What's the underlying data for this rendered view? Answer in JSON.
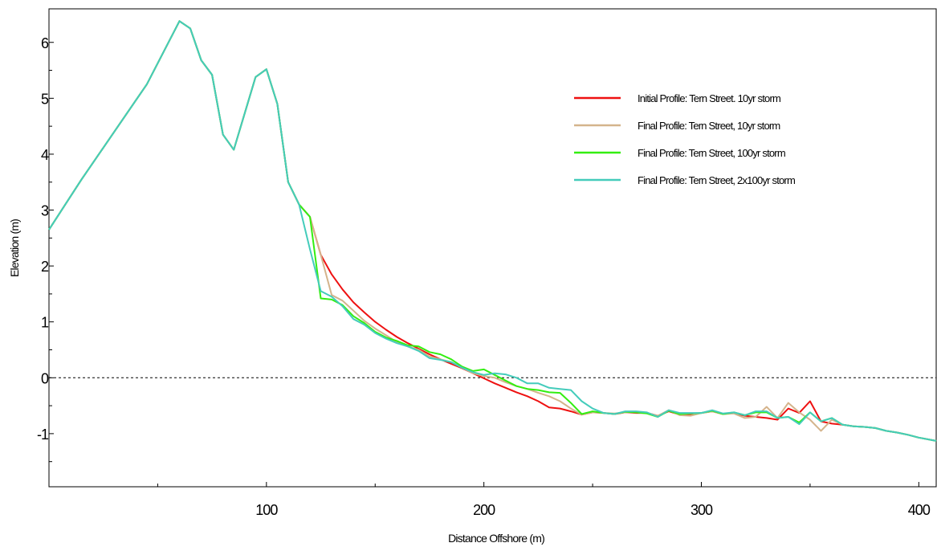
{
  "chart_data": {
    "type": "line",
    "xlabel": "Distance Offshore (m)",
    "ylabel": "Elevation (m)",
    "xlim": [
      0,
      408
    ],
    "ylim": [
      -1.95,
      6.6
    ],
    "x_ticks": [
      100,
      200,
      300,
      400
    ],
    "x_minor_ticks": [
      50,
      150,
      250,
      350
    ],
    "y_ticks": [
      -1,
      0,
      1,
      2,
      3,
      4,
      5,
      6
    ],
    "y_minor_ticks": [
      -1.5,
      -0.5,
      0.5,
      1.5,
      2.5,
      3.5,
      4.5,
      5.5
    ],
    "reference_line": {
      "y": 0,
      "style": "dashed"
    },
    "grid": false,
    "legend_position": "top-right",
    "series": [
      {
        "name": "Initial Profile: Tern Street. 10yr storm",
        "color": "#ee1111",
        "points": [
          [
            0,
            2.65
          ],
          [
            15,
            3.55
          ],
          [
            30,
            4.4
          ],
          [
            45,
            5.25
          ],
          [
            60,
            6.38
          ],
          [
            65,
            6.25
          ],
          [
            70,
            5.68
          ],
          [
            75,
            5.42
          ],
          [
            80,
            4.35
          ],
          [
            85,
            4.08
          ],
          [
            95,
            5.38
          ],
          [
            100,
            5.52
          ],
          [
            105,
            4.9
          ],
          [
            110,
            3.5
          ],
          [
            115,
            3.1
          ],
          [
            120,
            2.88
          ],
          [
            125,
            2.2
          ],
          [
            130,
            1.85
          ],
          [
            135,
            1.58
          ],
          [
            140,
            1.35
          ],
          [
            145,
            1.17
          ],
          [
            150,
            1.0
          ],
          [
            155,
            0.86
          ],
          [
            160,
            0.73
          ],
          [
            165,
            0.62
          ],
          [
            170,
            0.52
          ],
          [
            175,
            0.42
          ],
          [
            180,
            0.33
          ],
          [
            185,
            0.25
          ],
          [
            190,
            0.17
          ],
          [
            195,
            0.08
          ],
          [
            200,
            -0.01
          ],
          [
            205,
            -0.1
          ],
          [
            210,
            -0.18
          ],
          [
            215,
            -0.26
          ],
          [
            220,
            -0.33
          ],
          [
            225,
            -0.42
          ],
          [
            230,
            -0.53
          ],
          [
            235,
            -0.55
          ],
          [
            240,
            -0.6
          ],
          [
            245,
            -0.66
          ],
          [
            250,
            -0.62
          ],
          [
            255,
            -0.63
          ],
          [
            260,
            -0.65
          ],
          [
            265,
            -0.62
          ],
          [
            270,
            -0.63
          ],
          [
            275,
            -0.63
          ],
          [
            280,
            -0.68
          ],
          [
            285,
            -0.6
          ],
          [
            290,
            -0.66
          ],
          [
            295,
            -0.65
          ],
          [
            300,
            -0.63
          ],
          [
            305,
            -0.6
          ],
          [
            310,
            -0.65
          ],
          [
            315,
            -0.63
          ],
          [
            320,
            -0.68
          ],
          [
            325,
            -0.7
          ],
          [
            330,
            -0.72
          ],
          [
            335,
            -0.75
          ],
          [
            340,
            -0.55
          ],
          [
            345,
            -0.63
          ],
          [
            350,
            -0.42
          ],
          [
            355,
            -0.78
          ],
          [
            360,
            -0.82
          ],
          [
            365,
            -0.84
          ],
          [
            370,
            -0.87
          ],
          [
            375,
            -0.88
          ],
          [
            380,
            -0.9
          ],
          [
            385,
            -0.95
          ],
          [
            390,
            -0.98
          ],
          [
            395,
            -1.02
          ],
          [
            400,
            -1.07
          ],
          [
            408,
            -1.13
          ]
        ]
      },
      {
        "name": "Final Profile: Tern Street, 10yr storm",
        "color": "#d4b48c",
        "points": [
          [
            0,
            2.65
          ],
          [
            15,
            3.55
          ],
          [
            30,
            4.4
          ],
          [
            45,
            5.25
          ],
          [
            60,
            6.38
          ],
          [
            65,
            6.25
          ],
          [
            70,
            5.68
          ],
          [
            75,
            5.42
          ],
          [
            80,
            4.35
          ],
          [
            85,
            4.08
          ],
          [
            95,
            5.38
          ],
          [
            100,
            5.52
          ],
          [
            105,
            4.9
          ],
          [
            110,
            3.5
          ],
          [
            115,
            3.1
          ],
          [
            120,
            2.88
          ],
          [
            125,
            2.2
          ],
          [
            130,
            1.48
          ],
          [
            135,
            1.38
          ],
          [
            140,
            1.2
          ],
          [
            145,
            1.02
          ],
          [
            150,
            0.88
          ],
          [
            155,
            0.76
          ],
          [
            160,
            0.64
          ],
          [
            165,
            0.56
          ],
          [
            170,
            0.5
          ],
          [
            175,
            0.38
          ],
          [
            180,
            0.33
          ],
          [
            185,
            0.28
          ],
          [
            190,
            0.18
          ],
          [
            195,
            0.08
          ],
          [
            200,
            0.03
          ],
          [
            205,
            0.0
          ],
          [
            210,
            -0.08
          ],
          [
            215,
            -0.15
          ],
          [
            220,
            -0.2
          ],
          [
            225,
            -0.27
          ],
          [
            230,
            -0.33
          ],
          [
            235,
            -0.42
          ],
          [
            240,
            -0.55
          ],
          [
            245,
            -0.66
          ],
          [
            250,
            -0.62
          ],
          [
            255,
            -0.63
          ],
          [
            260,
            -0.64
          ],
          [
            265,
            -0.62
          ],
          [
            270,
            -0.62
          ],
          [
            275,
            -0.63
          ],
          [
            280,
            -0.68
          ],
          [
            285,
            -0.58
          ],
          [
            290,
            -0.67
          ],
          [
            295,
            -0.68
          ],
          [
            300,
            -0.63
          ],
          [
            305,
            -0.6
          ],
          [
            310,
            -0.65
          ],
          [
            315,
            -0.64
          ],
          [
            320,
            -0.72
          ],
          [
            325,
            -0.7
          ],
          [
            330,
            -0.52
          ],
          [
            335,
            -0.72
          ],
          [
            340,
            -0.45
          ],
          [
            345,
            -0.62
          ],
          [
            350,
            -0.75
          ],
          [
            355,
            -0.95
          ],
          [
            360,
            -0.75
          ],
          [
            365,
            -0.84
          ],
          [
            370,
            -0.87
          ],
          [
            375,
            -0.88
          ],
          [
            380,
            -0.9
          ],
          [
            385,
            -0.95
          ],
          [
            390,
            -0.98
          ],
          [
            395,
            -1.02
          ],
          [
            400,
            -1.07
          ],
          [
            408,
            -1.13
          ]
        ]
      },
      {
        "name": "Final Profile: Tern Street, 100yr storm",
        "color": "#33ee11",
        "points": [
          [
            0,
            2.65
          ],
          [
            15,
            3.55
          ],
          [
            30,
            4.4
          ],
          [
            45,
            5.25
          ],
          [
            60,
            6.38
          ],
          [
            65,
            6.25
          ],
          [
            70,
            5.68
          ],
          [
            75,
            5.42
          ],
          [
            80,
            4.35
          ],
          [
            85,
            4.08
          ],
          [
            95,
            5.38
          ],
          [
            100,
            5.52
          ],
          [
            105,
            4.9
          ],
          [
            110,
            3.5
          ],
          [
            115,
            3.1
          ],
          [
            120,
            2.88
          ],
          [
            125,
            1.42
          ],
          [
            130,
            1.4
          ],
          [
            135,
            1.3
          ],
          [
            140,
            1.1
          ],
          [
            145,
            0.98
          ],
          [
            150,
            0.82
          ],
          [
            155,
            0.72
          ],
          [
            160,
            0.66
          ],
          [
            165,
            0.58
          ],
          [
            170,
            0.56
          ],
          [
            175,
            0.46
          ],
          [
            180,
            0.42
          ],
          [
            185,
            0.33
          ],
          [
            190,
            0.2
          ],
          [
            195,
            0.12
          ],
          [
            200,
            0.15
          ],
          [
            205,
            0.05
          ],
          [
            210,
            -0.05
          ],
          [
            215,
            -0.15
          ],
          [
            220,
            -0.2
          ],
          [
            225,
            -0.22
          ],
          [
            230,
            -0.26
          ],
          [
            235,
            -0.27
          ],
          [
            240,
            -0.45
          ],
          [
            245,
            -0.65
          ],
          [
            250,
            -0.6
          ],
          [
            255,
            -0.63
          ],
          [
            260,
            -0.65
          ],
          [
            265,
            -0.61
          ],
          [
            270,
            -0.62
          ],
          [
            275,
            -0.64
          ],
          [
            280,
            -0.7
          ],
          [
            285,
            -0.59
          ],
          [
            290,
            -0.65
          ],
          [
            295,
            -0.64
          ],
          [
            300,
            -0.63
          ],
          [
            305,
            -0.59
          ],
          [
            310,
            -0.65
          ],
          [
            315,
            -0.62
          ],
          [
            320,
            -0.67
          ],
          [
            325,
            -0.62
          ],
          [
            330,
            -0.62
          ],
          [
            335,
            -0.72
          ],
          [
            340,
            -0.7
          ],
          [
            345,
            -0.8
          ],
          [
            350,
            -0.62
          ],
          [
            355,
            -0.78
          ],
          [
            360,
            -0.72
          ],
          [
            365,
            -0.84
          ],
          [
            370,
            -0.87
          ],
          [
            375,
            -0.88
          ],
          [
            380,
            -0.9
          ],
          [
            385,
            -0.95
          ],
          [
            390,
            -0.98
          ],
          [
            395,
            -1.02
          ],
          [
            400,
            -1.07
          ],
          [
            408,
            -1.13
          ]
        ]
      },
      {
        "name": "Final Profile: Tern Street, 2x100yr storm",
        "color": "#44ccbb",
        "points": [
          [
            0,
            2.65
          ],
          [
            15,
            3.55
          ],
          [
            30,
            4.4
          ],
          [
            45,
            5.25
          ],
          [
            60,
            6.38
          ],
          [
            65,
            6.25
          ],
          [
            70,
            5.68
          ],
          [
            75,
            5.42
          ],
          [
            80,
            4.35
          ],
          [
            85,
            4.08
          ],
          [
            95,
            5.38
          ],
          [
            100,
            5.52
          ],
          [
            105,
            4.9
          ],
          [
            110,
            3.5
          ],
          [
            115,
            3.1
          ],
          [
            120,
            2.3
          ],
          [
            125,
            1.55
          ],
          [
            130,
            1.45
          ],
          [
            135,
            1.28
          ],
          [
            140,
            1.05
          ],
          [
            145,
            0.95
          ],
          [
            150,
            0.8
          ],
          [
            155,
            0.7
          ],
          [
            160,
            0.62
          ],
          [
            165,
            0.56
          ],
          [
            170,
            0.48
          ],
          [
            175,
            0.35
          ],
          [
            180,
            0.32
          ],
          [
            185,
            0.28
          ],
          [
            190,
            0.18
          ],
          [
            195,
            0.1
          ],
          [
            200,
            0.05
          ],
          [
            205,
            0.08
          ],
          [
            210,
            0.06
          ],
          [
            215,
            0.0
          ],
          [
            220,
            -0.1
          ],
          [
            225,
            -0.1
          ],
          [
            230,
            -0.18
          ],
          [
            235,
            -0.2
          ],
          [
            240,
            -0.22
          ],
          [
            245,
            -0.42
          ],
          [
            250,
            -0.55
          ],
          [
            255,
            -0.63
          ],
          [
            260,
            -0.65
          ],
          [
            265,
            -0.6
          ],
          [
            270,
            -0.6
          ],
          [
            275,
            -0.62
          ],
          [
            280,
            -0.7
          ],
          [
            285,
            -0.58
          ],
          [
            290,
            -0.63
          ],
          [
            295,
            -0.63
          ],
          [
            300,
            -0.63
          ],
          [
            305,
            -0.58
          ],
          [
            310,
            -0.64
          ],
          [
            315,
            -0.62
          ],
          [
            320,
            -0.67
          ],
          [
            325,
            -0.6
          ],
          [
            330,
            -0.6
          ],
          [
            335,
            -0.72
          ],
          [
            340,
            -0.7
          ],
          [
            345,
            -0.83
          ],
          [
            350,
            -0.62
          ],
          [
            355,
            -0.78
          ],
          [
            360,
            -0.72
          ],
          [
            365,
            -0.84
          ],
          [
            370,
            -0.87
          ],
          [
            375,
            -0.88
          ],
          [
            380,
            -0.9
          ],
          [
            385,
            -0.95
          ],
          [
            390,
            -0.98
          ],
          [
            395,
            -1.02
          ],
          [
            400,
            -1.07
          ],
          [
            408,
            -1.13
          ]
        ]
      }
    ]
  }
}
